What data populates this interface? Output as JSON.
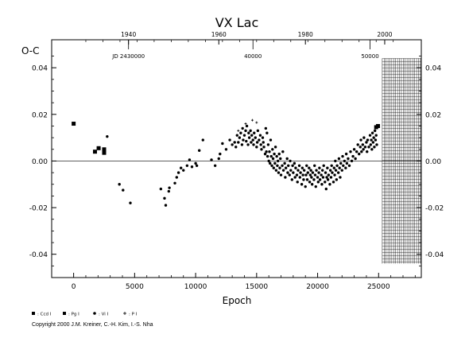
{
  "chart_data": {
    "type": "scatter",
    "title": "VX Lac",
    "ylabel": "O-C",
    "xlabel": "Epoch",
    "xlim": [
      -1800,
      28500
    ],
    "ylim": [
      -0.05,
      0.052
    ],
    "x_ticks": [
      0,
      5000,
      10000,
      15000,
      20000,
      25000
    ],
    "x_tick_labels": [
      "0",
      "5000",
      "10000",
      "15000",
      "20000",
      "25000"
    ],
    "y_ticks": [
      -0.04,
      -0.02,
      0.0,
      0.02,
      0.04
    ],
    "y_tick_labels_left": [
      "-0.04",
      "-0.02",
      "0.00",
      "0.02",
      "0.04"
    ],
    "y_tick_labels_right": [
      "-0.04",
      "-0.02",
      "0.00",
      "0.02",
      "0.04"
    ],
    "top_axis_years": [
      {
        "label": "1940",
        "epoch": 4500
      },
      {
        "label": "1960",
        "epoch": 11900
      },
      {
        "label": "1980",
        "epoch": 19000
      },
      {
        "label": "2000",
        "epoch": 25500
      }
    ],
    "top_axis_jd": [
      {
        "label": "JD 2430000",
        "epoch": 4500
      },
      {
        "label": "40000",
        "epoch": 14700
      },
      {
        "label": "50000",
        "epoch": 24300
      }
    ],
    "prediction_band": {
      "x_from": 25300,
      "x_to": 28500,
      "y_from": -0.044,
      "y_to": 0.044
    },
    "zero_line": 0.0,
    "legend": [
      {
        "marker": "square",
        "label": ": Ccd I"
      },
      {
        "marker": "square",
        "label": ": Pg I"
      },
      {
        "marker": "circle",
        "label": ": Vi I"
      },
      {
        "marker": "plus",
        "label": ": P I"
      }
    ],
    "series": [
      {
        "marker": "square",
        "points": [
          [
            0,
            0.016
          ],
          [
            1750,
            0.004
          ],
          [
            2050,
            0.0055
          ],
          [
            2500,
            0.005
          ],
          [
            2500,
            0.0035
          ],
          [
            24800,
            0.0145
          ],
          [
            24950,
            0.015
          ]
        ]
      },
      {
        "marker": "plus",
        "points": [
          [
            14650,
            0.0175
          ],
          [
            14100,
            0.016
          ],
          [
            13500,
            0.013
          ],
          [
            15000,
            0.0165
          ]
        ]
      },
      {
        "marker": "circle",
        "points": [
          [
            2750,
            0.0105
          ],
          [
            3750,
            -0.01
          ],
          [
            4050,
            -0.0125
          ],
          [
            4650,
            -0.018
          ],
          [
            7150,
            -0.012
          ],
          [
            7450,
            -0.016
          ],
          [
            7550,
            -0.019
          ],
          [
            7800,
            -0.013
          ],
          [
            7850,
            -0.0115
          ],
          [
            8300,
            -0.0095
          ],
          [
            8450,
            -0.007
          ],
          [
            8600,
            -0.005
          ],
          [
            8800,
            -0.003
          ],
          [
            9000,
            -0.004
          ],
          [
            9300,
            -0.002
          ],
          [
            9500,
            0.0005
          ],
          [
            9700,
            -0.0025
          ],
          [
            10000,
            -0.001
          ],
          [
            10100,
            -0.002
          ],
          [
            10300,
            0.0045
          ],
          [
            10600,
            0.009
          ],
          [
            11300,
            0.0005
          ],
          [
            11600,
            -0.002
          ],
          [
            11900,
            0.001
          ],
          [
            12000,
            0.003
          ],
          [
            12200,
            0.0075
          ],
          [
            12500,
            0.005
          ],
          [
            12800,
            0.009
          ],
          [
            13000,
            0.007
          ],
          [
            13200,
            0.008
          ],
          [
            13300,
            0.006
          ],
          [
            13400,
            0.011
          ],
          [
            13500,
            0.008
          ],
          [
            13600,
            0.01
          ],
          [
            13700,
            0.012
          ],
          [
            13800,
            0.007
          ],
          [
            13850,
            0.014
          ],
          [
            13900,
            0.009
          ],
          [
            14000,
            0.011
          ],
          [
            14100,
            0.013
          ],
          [
            14150,
            0.0085
          ],
          [
            14200,
            0.015
          ],
          [
            14300,
            0.007
          ],
          [
            14350,
            0.012
          ],
          [
            14400,
            0.01
          ],
          [
            14500,
            0.013
          ],
          [
            14550,
            0.008
          ],
          [
            14600,
            0.011
          ],
          [
            14700,
            0.009
          ],
          [
            14750,
            0.007
          ],
          [
            14800,
            0.012
          ],
          [
            14900,
            0.01
          ],
          [
            15000,
            0.006
          ],
          [
            15050,
            0.008
          ],
          [
            15100,
            0.013
          ],
          [
            15200,
            0.009
          ],
          [
            15300,
            0.011
          ],
          [
            15350,
            0.007
          ],
          [
            15400,
            0.005
          ],
          [
            15500,
            0.01
          ],
          [
            15550,
            0.008
          ],
          [
            15600,
            0.006
          ],
          [
            15700,
            0.003
          ],
          [
            15750,
            0.014
          ],
          [
            15800,
            0.004
          ],
          [
            15850,
            0.012
          ],
          [
            15900,
            0.002
          ],
          [
            15950,
            0.007
          ],
          [
            16000,
            0.0
          ],
          [
            16050,
            0.004
          ],
          [
            16100,
            -0.001
          ],
          [
            16150,
            0.009
          ],
          [
            16200,
            0.002
          ],
          [
            16250,
            -0.002
          ],
          [
            16300,
            0.005
          ],
          [
            16350,
            0.001
          ],
          [
            16400,
            -0.003
          ],
          [
            16450,
            0.003
          ],
          [
            16500,
            -0.001
          ],
          [
            16550,
            0.006
          ],
          [
            16600,
            -0.004
          ],
          [
            16650,
            0.002
          ],
          [
            16700,
            -0.002
          ],
          [
            16750,
            0.0
          ],
          [
            16800,
            -0.005
          ],
          [
            16850,
            0.003
          ],
          [
            16900,
            -0.003
          ],
          [
            16950,
            0.001
          ],
          [
            17000,
            -0.006
          ],
          [
            17100,
            -0.002
          ],
          [
            17150,
            0.004
          ],
          [
            17200,
            -0.004
          ],
          [
            17300,
            -0.001
          ],
          [
            17350,
            -0.007
          ],
          [
            17400,
            -0.003
          ],
          [
            17500,
            0.001
          ],
          [
            17550,
            -0.005
          ],
          [
            17600,
            -0.002
          ],
          [
            17700,
            -0.006
          ],
          [
            17750,
            0.0
          ],
          [
            17800,
            -0.004
          ],
          [
            17900,
            -0.008
          ],
          [
            17950,
            -0.002
          ],
          [
            18000,
            -0.005
          ],
          [
            18100,
            -0.001
          ],
          [
            18150,
            -0.007
          ],
          [
            18200,
            -0.003
          ],
          [
            18300,
            -0.006
          ],
          [
            18350,
            -0.009
          ],
          [
            18400,
            -0.004
          ],
          [
            18500,
            -0.002
          ],
          [
            18550,
            -0.007
          ],
          [
            18600,
            -0.005
          ],
          [
            18700,
            -0.01
          ],
          [
            18750,
            -0.003
          ],
          [
            18800,
            -0.006
          ],
          [
            18850,
            -0.008
          ],
          [
            18900,
            -0.004
          ],
          [
            19000,
            -0.011
          ],
          [
            19050,
            -0.006
          ],
          [
            19100,
            -0.002
          ],
          [
            19150,
            -0.008
          ],
          [
            19200,
            -0.005
          ],
          [
            19300,
            -0.003
          ],
          [
            19350,
            -0.009
          ],
          [
            19400,
            -0.006
          ],
          [
            19450,
            -0.004
          ],
          [
            19500,
            -0.007
          ],
          [
            19550,
            -0.01
          ],
          [
            19600,
            -0.005
          ],
          [
            19700,
            -0.008
          ],
          [
            19750,
            -0.002
          ],
          [
            19800,
            -0.006
          ],
          [
            19850,
            -0.011
          ],
          [
            19900,
            -0.004
          ],
          [
            20000,
            -0.007
          ],
          [
            20050,
            -0.009
          ],
          [
            20100,
            -0.005
          ],
          [
            20150,
            -0.003
          ],
          [
            20200,
            -0.008
          ],
          [
            20300,
            -0.006
          ],
          [
            20350,
            -0.01
          ],
          [
            20400,
            -0.004
          ],
          [
            20450,
            -0.007
          ],
          [
            20500,
            -0.002
          ],
          [
            20600,
            -0.009
          ],
          [
            20650,
            -0.005
          ],
          [
            20700,
            -0.012
          ],
          [
            20750,
            -0.007
          ],
          [
            20800,
            -0.003
          ],
          [
            20850,
            -0.008
          ],
          [
            20900,
            -0.006
          ],
          [
            21000,
            -0.01
          ],
          [
            21050,
            -0.004
          ],
          [
            21100,
            -0.007
          ],
          [
            21150,
            -0.002
          ],
          [
            21200,
            -0.005
          ],
          [
            21300,
            -0.009
          ],
          [
            21350,
            -0.003
          ],
          [
            21400,
            -0.006
          ],
          [
            21450,
            0.0
          ],
          [
            21500,
            -0.004
          ],
          [
            21550,
            -0.008
          ],
          [
            21600,
            -0.002
          ],
          [
            21700,
            -0.005
          ],
          [
            21750,
            0.001
          ],
          [
            21800,
            -0.003
          ],
          [
            21850,
            -0.007
          ],
          [
            21900,
            -0.001
          ],
          [
            22000,
            -0.004
          ],
          [
            22050,
            0.002
          ],
          [
            22100,
            -0.002
          ],
          [
            22200,
            0.0
          ],
          [
            22300,
            -0.003
          ],
          [
            22350,
            0.003
          ],
          [
            22400,
            -0.001
          ],
          [
            22500,
            0.001
          ],
          [
            22600,
            -0.002
          ],
          [
            22700,
            0.004
          ],
          [
            22800,
            0.0
          ],
          [
            22900,
            0.002
          ],
          [
            23000,
            0.005
          ],
          [
            23100,
            0.001
          ],
          [
            23200,
            0.004
          ],
          [
            23300,
            0.007
          ],
          [
            23400,
            0.003
          ],
          [
            23500,
            0.006
          ],
          [
            23550,
            0.009
          ],
          [
            23600,
            0.004
          ],
          [
            23700,
            0.007
          ],
          [
            23750,
            0.005
          ],
          [
            23800,
            0.01
          ],
          [
            23900,
            0.006
          ],
          [
            24000,
            0.008
          ],
          [
            24050,
            0.004
          ],
          [
            24100,
            0.009
          ],
          [
            24200,
            0.006
          ],
          [
            24300,
            0.011
          ],
          [
            24350,
            0.007
          ],
          [
            24400,
            0.009
          ],
          [
            24450,
            0.005
          ],
          [
            24500,
            0.012
          ],
          [
            24550,
            0.008
          ],
          [
            24600,
            0.01
          ],
          [
            24650,
            0.006
          ],
          [
            24700,
            0.013
          ],
          [
            24750,
            0.009
          ],
          [
            24800,
            0.011
          ],
          [
            24850,
            0.007
          ]
        ]
      }
    ]
  },
  "copyright": "Copyright 2000 J.M. Kreiner, C.-H. Kim, I.-S. Nha"
}
